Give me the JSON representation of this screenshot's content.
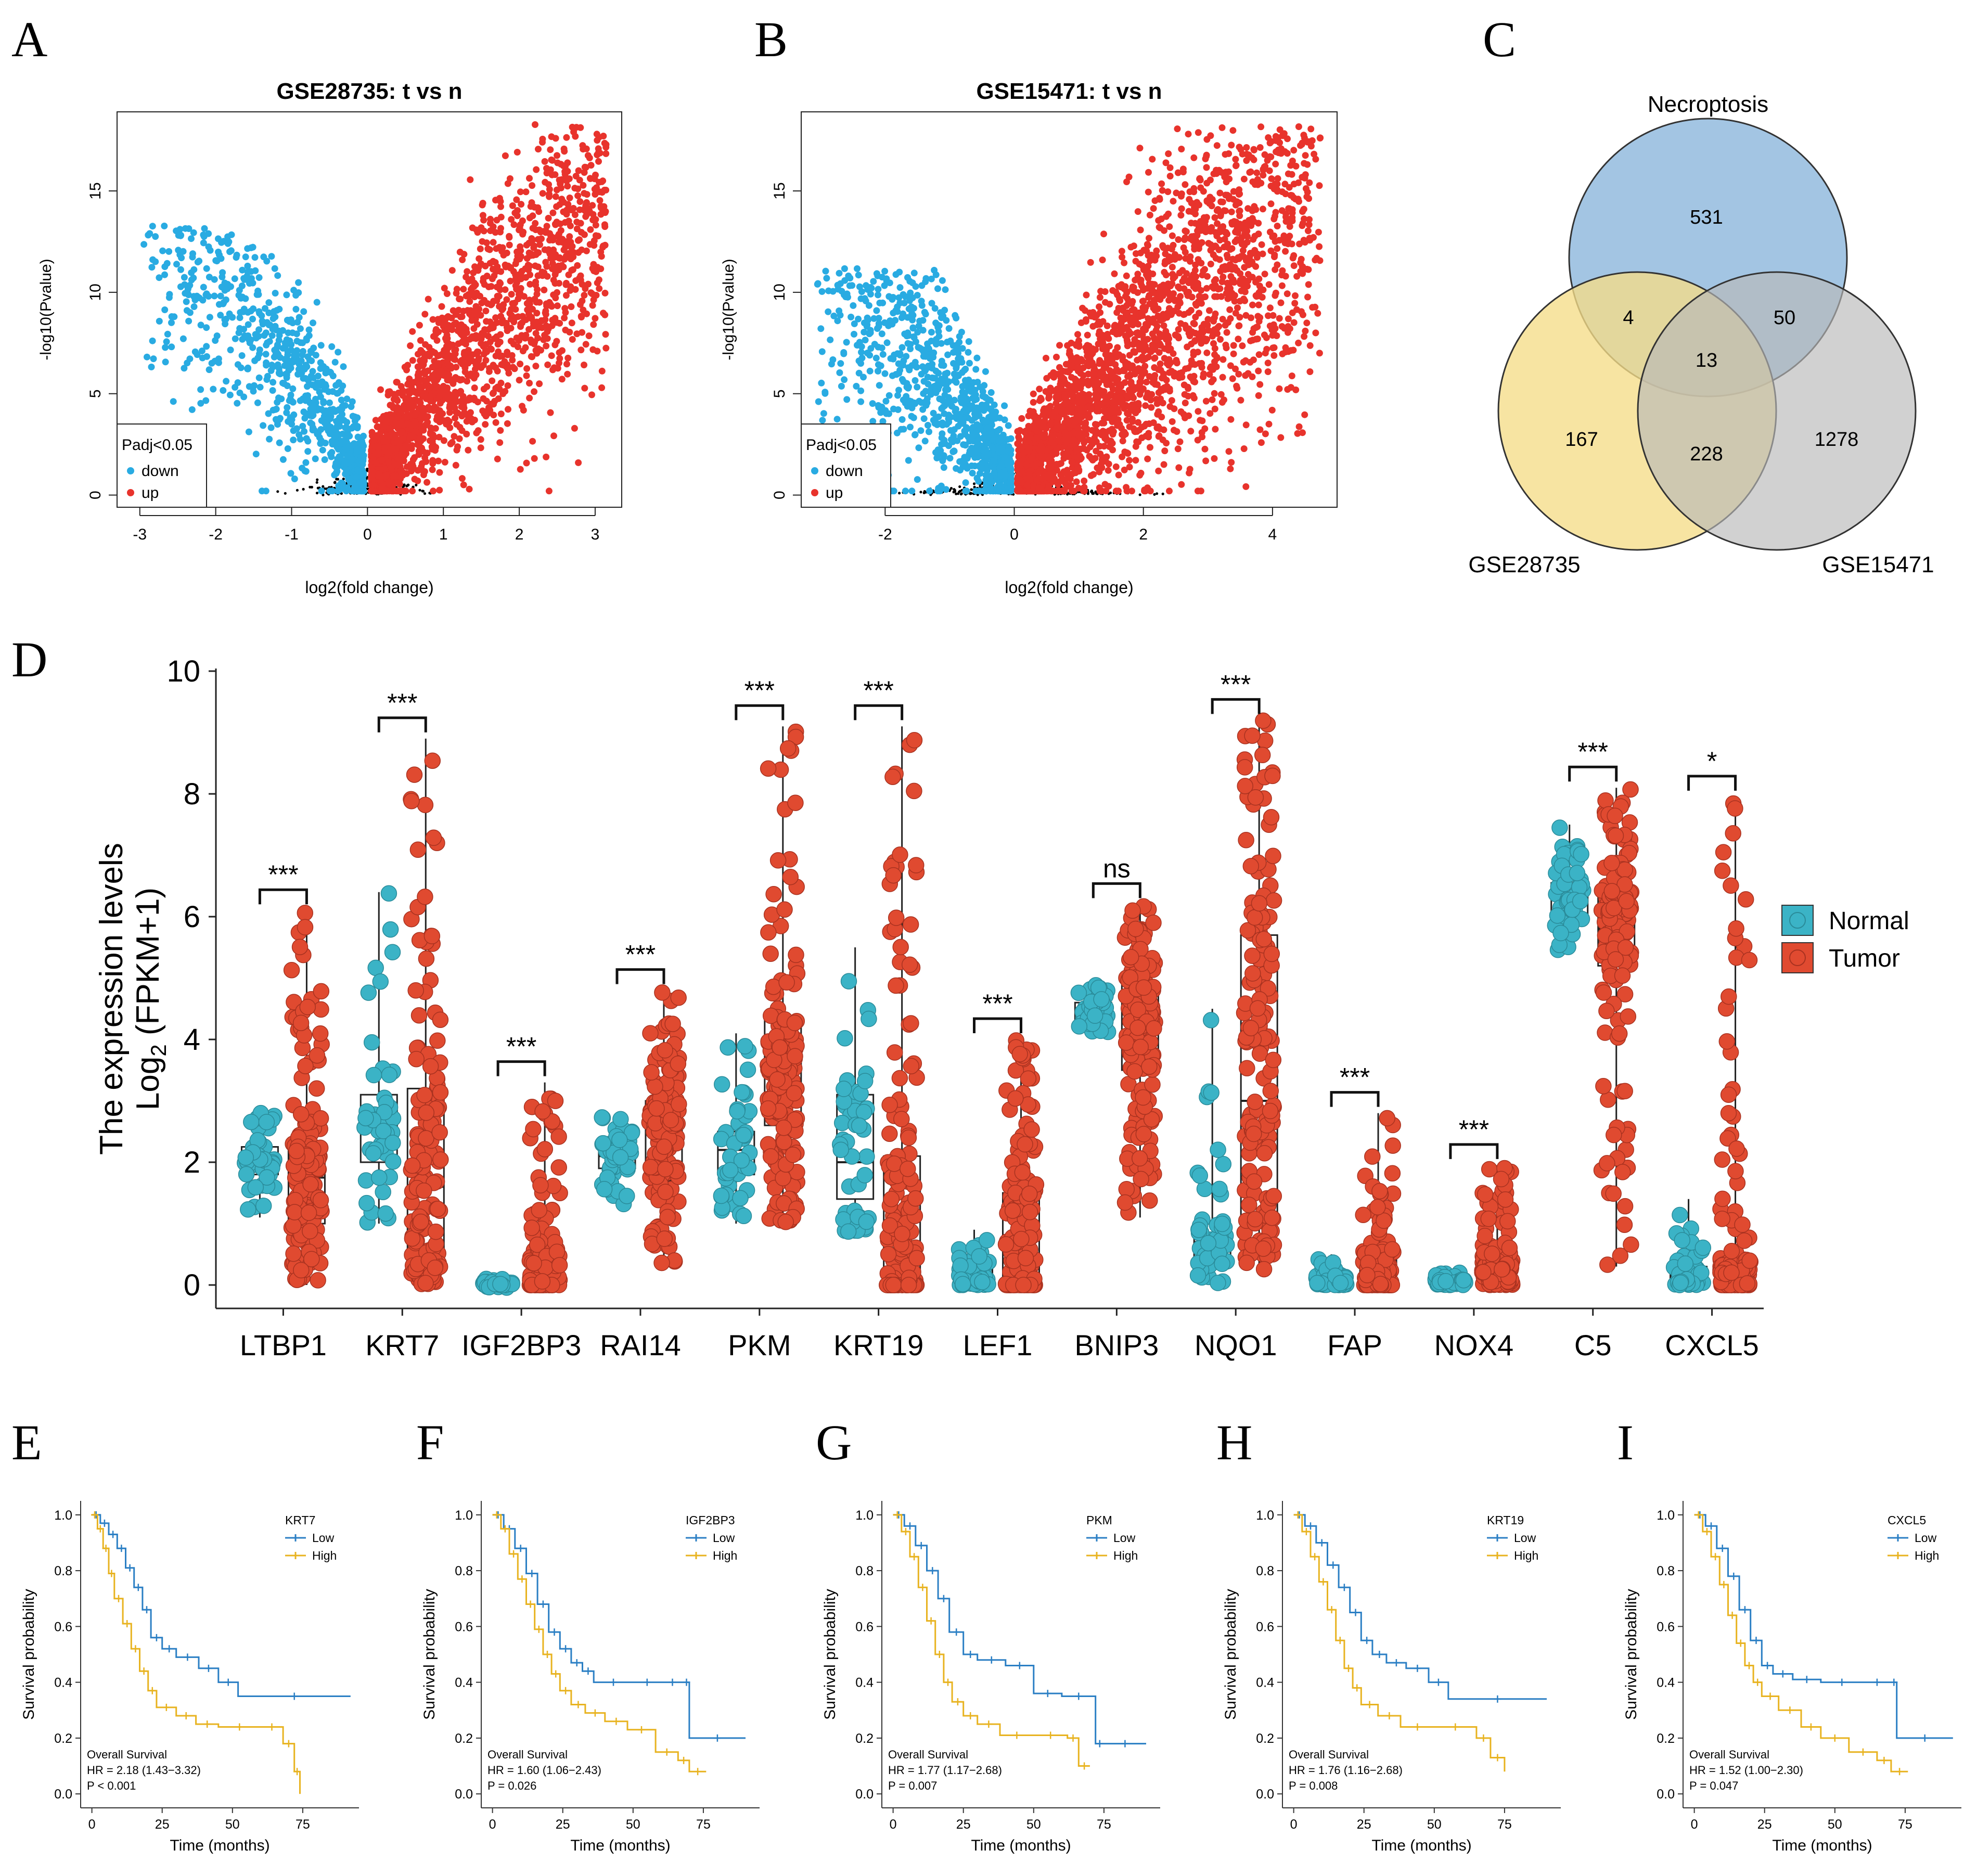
{
  "panel_labels": [
    "A",
    "B",
    "C",
    "D",
    "E",
    "F",
    "G",
    "H",
    "I"
  ],
  "chart_data": [
    {
      "panel": "A",
      "type": "scatter",
      "title": "GSE28735: t vs n",
      "xlabel": "log2(fold change)",
      "ylabel": "-log10(Pvalue)",
      "xlim": [
        -3.3,
        3.35
      ],
      "ylim": [
        -0.6,
        18.9
      ],
      "xticks": [
        -3,
        -2,
        -1,
        0,
        1,
        2,
        3
      ],
      "yticks": [
        0,
        5,
        10,
        15
      ],
      "legend": {
        "title": "Padj<0.05",
        "items": [
          {
            "label": "down",
            "color": "#29abe2"
          },
          {
            "label": "up",
            "color": "#e8332c"
          }
        ],
        "position": "bottom-left"
      },
      "series": [
        {
          "name": "down",
          "color": "#29abe2",
          "x_range": [
            -3.0,
            -0.05
          ],
          "y_peak": 13.2,
          "note": "dense point cloud of down-regulated genes"
        },
        {
          "name": "up",
          "color": "#e8332c",
          "x_range": [
            0.05,
            3.2
          ],
          "y_peak": 18.2,
          "note": "dense point cloud of up-regulated genes"
        },
        {
          "name": "ns",
          "color": "#000000",
          "x_range": [
            -0.9,
            0.9
          ],
          "y_peak": 1.5
        }
      ]
    },
    {
      "panel": "B",
      "type": "scatter",
      "title": "GSE15471: t vs n",
      "xlabel": "log2(fold change)",
      "ylabel": "-log10(Pvalue)",
      "xlim": [
        -3.3,
        5.0
      ],
      "ylim": [
        -0.6,
        18.9
      ],
      "xticks": [
        -2,
        0,
        2,
        4
      ],
      "yticks": [
        0,
        5,
        10,
        15
      ],
      "legend": {
        "title": "Padj<0.05",
        "items": [
          {
            "label": "down",
            "color": "#29abe2"
          },
          {
            "label": "up",
            "color": "#e8332c"
          }
        ],
        "position": "bottom-left"
      },
      "series": [
        {
          "name": "down",
          "color": "#29abe2",
          "x_range": [
            -3.1,
            -0.1
          ],
          "y_peak": 11.0
        },
        {
          "name": "up",
          "color": "#e8332c",
          "x_range": [
            0.1,
            4.8
          ],
          "y_peak": 18.1
        },
        {
          "name": "ns",
          "color": "#000000",
          "x_range": [
            -2.2,
            2.2
          ],
          "y_peak": 1.5
        }
      ]
    },
    {
      "panel": "C",
      "type": "venn",
      "sets": [
        {
          "name": "Necroptosis",
          "color": "#a3c5e3"
        },
        {
          "name": "GSE28735",
          "color": "#f7e3a0"
        },
        {
          "name": "GSE15471",
          "color": "#d3d3d3"
        }
      ],
      "regions": {
        "necroptosis_only": "531",
        "necroptosis_gse28735": "4",
        "necroptosis_gse15471": "50",
        "all_three": "13",
        "gse28735_only": "167",
        "gse28735_gse15471": "228",
        "gse15471_only": "1278"
      }
    },
    {
      "panel": "D",
      "type": "box",
      "ylabel_line1": "The expression levels",
      "ylabel_line2": "Log",
      "ylabel_sub": "2",
      "ylabel_tail": " (FPKM+1)",
      "ylim": [
        -0.4,
        10
      ],
      "yticks": [
        0,
        2,
        4,
        6,
        8,
        10
      ],
      "legend": [
        {
          "label": "Normal",
          "color": "#3bb3c6"
        },
        {
          "label": "Tumor",
          "color": "#e04a30"
        }
      ],
      "categories": [
        "LTBP1",
        "KRT7",
        "IGF2BP3",
        "RAI14",
        "PKM",
        "KRT19",
        "LEF1",
        "BNIP3",
        "NQO1",
        "FAP",
        "NOX4",
        "C5",
        "CXCL5"
      ],
      "significance": [
        "***",
        "***",
        "***",
        "***",
        "***",
        "***",
        "***",
        "ns",
        "***",
        "***",
        "***",
        "***",
        "*"
      ],
      "normal": [
        [
          1.1,
          1.8,
          2.0,
          2.25,
          2.8
        ],
        [
          1.0,
          2.0,
          2.5,
          3.1,
          6.4
        ],
        [
          -0.05,
          0.0,
          0.02,
          0.05,
          0.1
        ],
        [
          1.3,
          1.9,
          2.1,
          2.3,
          2.8
        ],
        [
          1.0,
          1.8,
          2.2,
          2.5,
          4.1
        ],
        [
          0.8,
          1.4,
          2.0,
          3.1,
          5.5
        ],
        [
          0.0,
          0.05,
          0.15,
          0.35,
          0.9
        ],
        [
          4.1,
          4.25,
          4.45,
          4.6,
          4.9
        ],
        [
          0.0,
          0.4,
          0.7,
          1.0,
          4.5
        ],
        [
          0.0,
          0.02,
          0.08,
          0.15,
          0.5
        ],
        [
          0.0,
          0.02,
          0.05,
          0.1,
          0.2
        ],
        [
          5.4,
          6.0,
          6.3,
          6.55,
          7.5
        ],
        [
          0.0,
          0.05,
          0.15,
          0.3,
          1.4
        ]
      ],
      "tumor": [
        [
          0.0,
          1.0,
          1.75,
          2.3,
          6.1
        ],
        [
          0.0,
          0.35,
          1.6,
          3.2,
          8.9
        ],
        [
          0.0,
          0.0,
          0.2,
          0.55,
          3.3
        ],
        [
          0.35,
          1.7,
          2.5,
          3.0,
          4.8
        ],
        [
          1.0,
          2.6,
          3.5,
          4.3,
          9.1
        ],
        [
          0.0,
          0.0,
          0.6,
          2.1,
          9.1
        ],
        [
          0.0,
          0.0,
          0.4,
          1.5,
          4.0
        ],
        [
          1.1,
          3.5,
          4.3,
          4.9,
          6.2
        ],
        [
          0.2,
          1.1,
          3.0,
          5.7,
          9.2
        ],
        [
          0.0,
          0.0,
          0.2,
          0.55,
          2.8
        ],
        [
          0.0,
          0.05,
          0.2,
          0.4,
          1.95
        ],
        [
          0.3,
          5.2,
          5.8,
          6.4,
          8.1
        ],
        [
          0.0,
          0.0,
          0.2,
          0.45,
          7.95
        ]
      ]
    },
    {
      "panel": "E",
      "type": "line",
      "title": "",
      "gene": "KRT7",
      "xlabel": "Time (months)",
      "ylabel": "Survival probability",
      "xlim": [
        -4,
        95
      ],
      "ylim": [
        -0.05,
        1.05
      ],
      "xticks": [
        0,
        25,
        50,
        75
      ],
      "yticks": [
        0.0,
        0.2,
        0.4,
        0.6,
        0.8,
        1.0
      ],
      "legend": [
        {
          "label": "Low",
          "color": "#2b7fc4"
        },
        {
          "label": "High",
          "color": "#e8b320"
        }
      ],
      "annotation": [
        "Overall Survival",
        "HR = 2.18 (1.43−3.32)",
        "P < 0.001"
      ],
      "series": [
        {
          "name": "Low",
          "x": [
            0,
            3,
            6,
            9,
            12,
            15,
            18,
            21,
            25,
            30,
            38,
            45,
            52,
            92
          ],
          "y": [
            1.0,
            0.97,
            0.93,
            0.88,
            0.81,
            0.74,
            0.66,
            0.56,
            0.52,
            0.49,
            0.45,
            0.4,
            0.35,
            0.35
          ]
        },
        {
          "name": "High",
          "x": [
            0,
            2,
            4,
            6,
            8,
            11,
            14,
            17,
            20,
            23,
            30,
            37,
            45,
            60,
            68,
            72,
            74
          ],
          "y": [
            1.0,
            0.95,
            0.88,
            0.79,
            0.7,
            0.61,
            0.52,
            0.44,
            0.37,
            0.31,
            0.28,
            0.25,
            0.24,
            0.24,
            0.18,
            0.08,
            0.0
          ]
        }
      ]
    },
    {
      "panel": "F",
      "type": "line",
      "gene": "IGF2BP3",
      "xlabel": "Time (months)",
      "ylabel": "Survival probability",
      "xlim": [
        -4,
        95
      ],
      "ylim": [
        -0.05,
        1.05
      ],
      "xticks": [
        0,
        25,
        50,
        75
      ],
      "yticks": [
        0.0,
        0.2,
        0.4,
        0.6,
        0.8,
        1.0
      ],
      "legend": [
        {
          "label": "Low",
          "color": "#2b7fc4"
        },
        {
          "label": "High",
          "color": "#e8b320"
        }
      ],
      "annotation": [
        "Overall Survival",
        "HR = 1.60 (1.06−2.43)",
        "P = 0.026"
      ],
      "series": [
        {
          "name": "Low",
          "x": [
            0,
            4,
            8,
            12,
            16,
            20,
            24,
            28,
            32,
            36,
            50,
            60,
            68,
            70,
            90
          ],
          "y": [
            1.0,
            0.95,
            0.88,
            0.79,
            0.68,
            0.58,
            0.52,
            0.47,
            0.44,
            0.4,
            0.4,
            0.4,
            0.4,
            0.2,
            0.2
          ]
        },
        {
          "name": "High",
          "x": [
            0,
            3,
            6,
            9,
            12,
            15,
            18,
            21,
            24,
            28,
            33,
            40,
            48,
            58,
            66,
            70,
            76
          ],
          "y": [
            1.0,
            0.95,
            0.86,
            0.77,
            0.68,
            0.59,
            0.5,
            0.43,
            0.37,
            0.32,
            0.29,
            0.26,
            0.23,
            0.15,
            0.12,
            0.08,
            0.08
          ]
        }
      ]
    },
    {
      "panel": "G",
      "type": "line",
      "gene": "PKM",
      "xlabel": "Time (months)",
      "ylabel": "Survival probability",
      "xlim": [
        -4,
        95
      ],
      "ylim": [
        -0.05,
        1.05
      ],
      "xticks": [
        0,
        25,
        50,
        75
      ],
      "yticks": [
        0.0,
        0.2,
        0.4,
        0.6,
        0.8,
        1.0
      ],
      "legend": [
        {
          "label": "Low",
          "color": "#2b7fc4"
        },
        {
          "label": "High",
          "color": "#e8b320"
        }
      ],
      "annotation": [
        "Overall Survival",
        "HR = 1.77 (1.17−2.68)",
        "P = 0.007"
      ],
      "series": [
        {
          "name": "Low",
          "x": [
            0,
            4,
            8,
            12,
            16,
            20,
            25,
            30,
            40,
            50,
            60,
            72,
            75,
            90
          ],
          "y": [
            1.0,
            0.96,
            0.89,
            0.8,
            0.7,
            0.58,
            0.5,
            0.48,
            0.46,
            0.36,
            0.35,
            0.18,
            0.18,
            0.18
          ]
        },
        {
          "name": "High",
          "x": [
            0,
            3,
            6,
            9,
            12,
            15,
            18,
            21,
            25,
            30,
            38,
            50,
            62,
            66,
            70
          ],
          "y": [
            1.0,
            0.94,
            0.85,
            0.74,
            0.62,
            0.5,
            0.4,
            0.33,
            0.28,
            0.25,
            0.21,
            0.21,
            0.2,
            0.1,
            0.1
          ]
        }
      ]
    },
    {
      "panel": "H",
      "type": "line",
      "gene": "KRT19",
      "xlabel": "Time (months)",
      "ylabel": "Survival probability",
      "xlim": [
        -4,
        95
      ],
      "ylim": [
        -0.05,
        1.05
      ],
      "xticks": [
        0,
        25,
        50,
        75
      ],
      "yticks": [
        0.0,
        0.2,
        0.4,
        0.6,
        0.8,
        1.0
      ],
      "legend": [
        {
          "label": "Low",
          "color": "#2b7fc4"
        },
        {
          "label": "High",
          "color": "#e8b320"
        }
      ],
      "annotation": [
        "Overall Survival",
        "HR = 1.76 (1.16−2.68)",
        "P = 0.008"
      ],
      "series": [
        {
          "name": "Low",
          "x": [
            0,
            4,
            8,
            12,
            16,
            20,
            24,
            28,
            33,
            40,
            48,
            55,
            90
          ],
          "y": [
            1.0,
            0.96,
            0.9,
            0.82,
            0.74,
            0.65,
            0.55,
            0.5,
            0.47,
            0.45,
            0.4,
            0.34,
            0.34
          ]
        },
        {
          "name": "High",
          "x": [
            0,
            3,
            6,
            9,
            12,
            15,
            18,
            21,
            24,
            30,
            38,
            50,
            65,
            70,
            75
          ],
          "y": [
            1.0,
            0.94,
            0.85,
            0.76,
            0.66,
            0.55,
            0.45,
            0.38,
            0.32,
            0.28,
            0.24,
            0.24,
            0.2,
            0.13,
            0.08
          ]
        }
      ]
    },
    {
      "panel": "I",
      "type": "line",
      "gene": "CXCL5",
      "xlabel": "Time (months)",
      "ylabel": "Survival probability",
      "xlim": [
        -4,
        95
      ],
      "ylim": [
        -0.05,
        1.05
      ],
      "xticks": [
        0,
        25,
        50,
        75
      ],
      "yticks": [
        0.0,
        0.2,
        0.4,
        0.6,
        0.8,
        1.0
      ],
      "legend": [
        {
          "label": "Low",
          "color": "#2b7fc4"
        },
        {
          "label": "High",
          "color": "#e8b320"
        }
      ],
      "annotation": [
        "Overall Survival",
        "HR = 1.52 (1.00−2.30)",
        "P = 0.047"
      ],
      "series": [
        {
          "name": "Low",
          "x": [
            0,
            4,
            8,
            12,
            16,
            20,
            24,
            28,
            35,
            45,
            60,
            70,
            72,
            92
          ],
          "y": [
            1.0,
            0.96,
            0.88,
            0.78,
            0.66,
            0.55,
            0.46,
            0.43,
            0.41,
            0.4,
            0.4,
            0.4,
            0.2,
            0.2
          ]
        },
        {
          "name": "High",
          "x": [
            0,
            3,
            6,
            9,
            12,
            15,
            18,
            21,
            24,
            30,
            38,
            45,
            55,
            65,
            70,
            76
          ],
          "y": [
            1.0,
            0.94,
            0.85,
            0.75,
            0.64,
            0.54,
            0.46,
            0.4,
            0.35,
            0.3,
            0.24,
            0.2,
            0.15,
            0.12,
            0.08,
            0.08
          ]
        }
      ]
    }
  ]
}
